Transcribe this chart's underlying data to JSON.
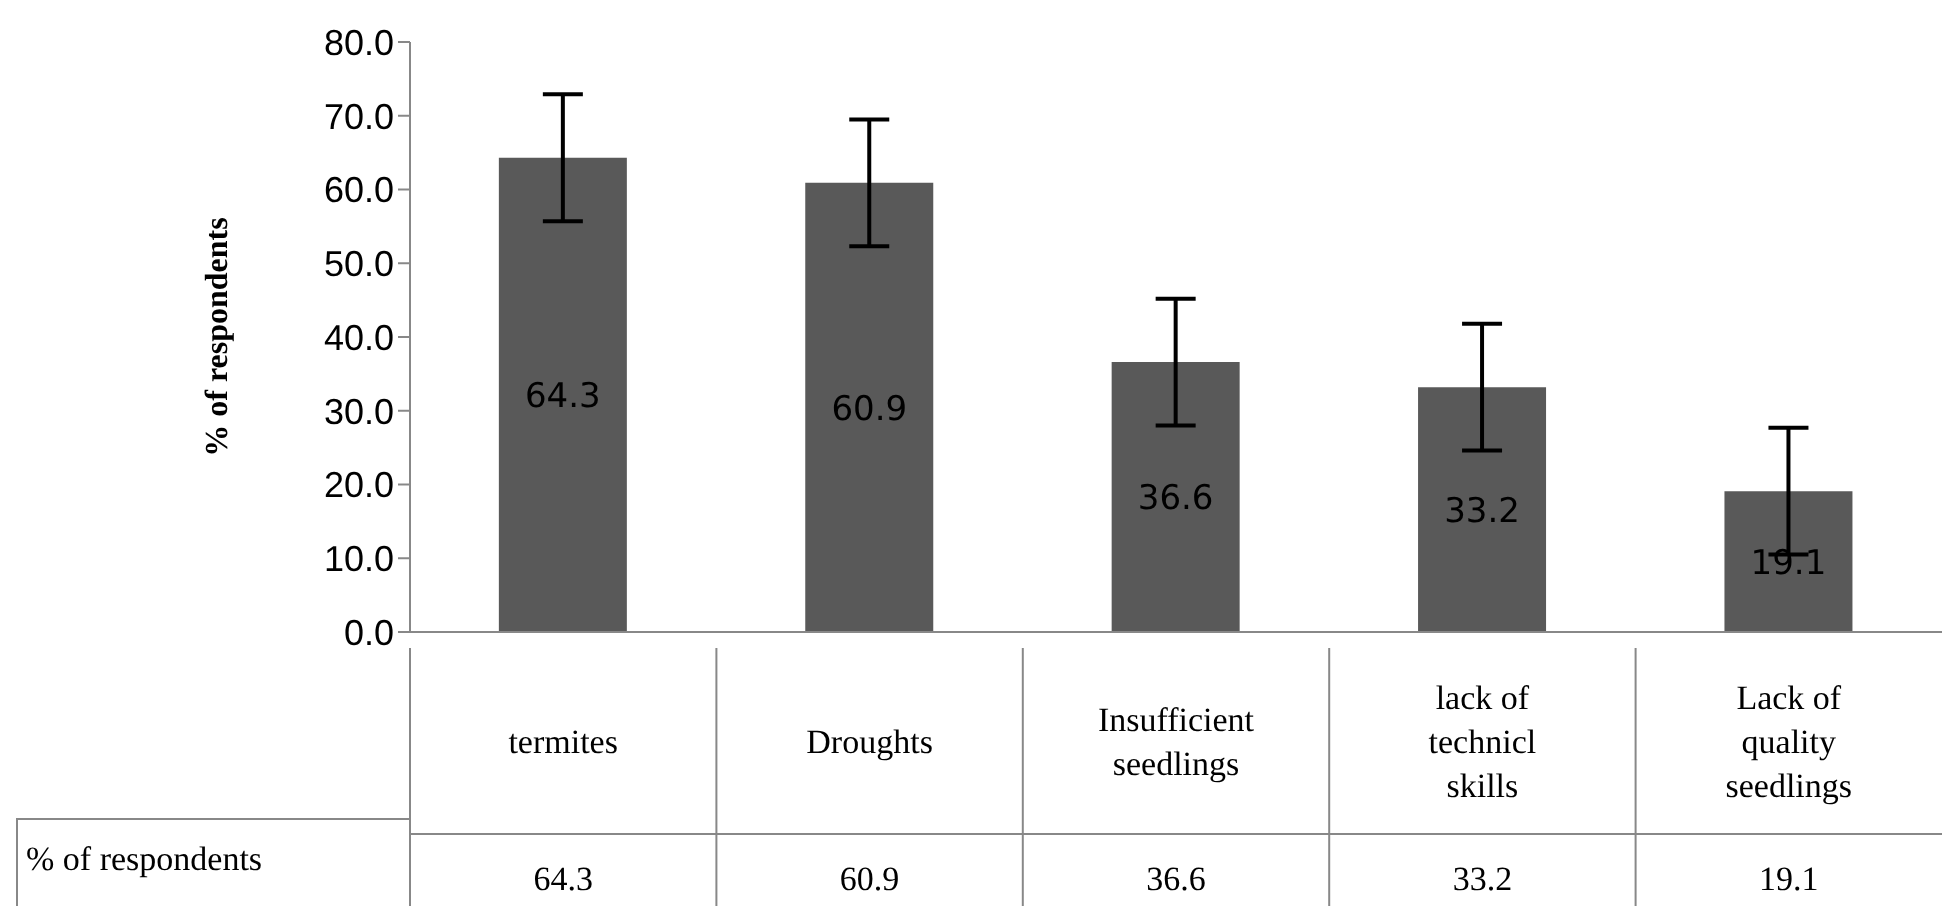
{
  "chart_data": {
    "type": "bar",
    "ylabel": "% of respondents",
    "categories": [
      "termites",
      "Droughts",
      "Insufficient seedlings",
      "lack of technicl skills",
      "Lack of quality seedlings"
    ],
    "series": [
      {
        "name": "% of respondents",
        "color": "#595959",
        "values": [
          64.3,
          60.9,
          36.6,
          33.2,
          19.1
        ],
        "errors": [
          8.6,
          8.6,
          8.6,
          8.6,
          8.6
        ]
      }
    ],
    "ylim": [
      0,
      80
    ],
    "yticks": [
      {
        "value": 0,
        "label": "0.0"
      },
      {
        "value": 10,
        "label": "10.0"
      },
      {
        "value": 20,
        "label": "20.0"
      },
      {
        "value": 30,
        "label": "30.0"
      },
      {
        "value": 40,
        "label": "40.0"
      },
      {
        "value": 50,
        "label": "50.0"
      },
      {
        "value": 60,
        "label": "60.0"
      },
      {
        "value": 70,
        "label": "70.0"
      },
      {
        "value": 80,
        "label": "80.0"
      }
    ],
    "data_labels": true,
    "annotations": [
      "64.3",
      "60.9",
      "36.6",
      "33.2",
      "19.1"
    ],
    "grid": false,
    "legend": false
  }
}
